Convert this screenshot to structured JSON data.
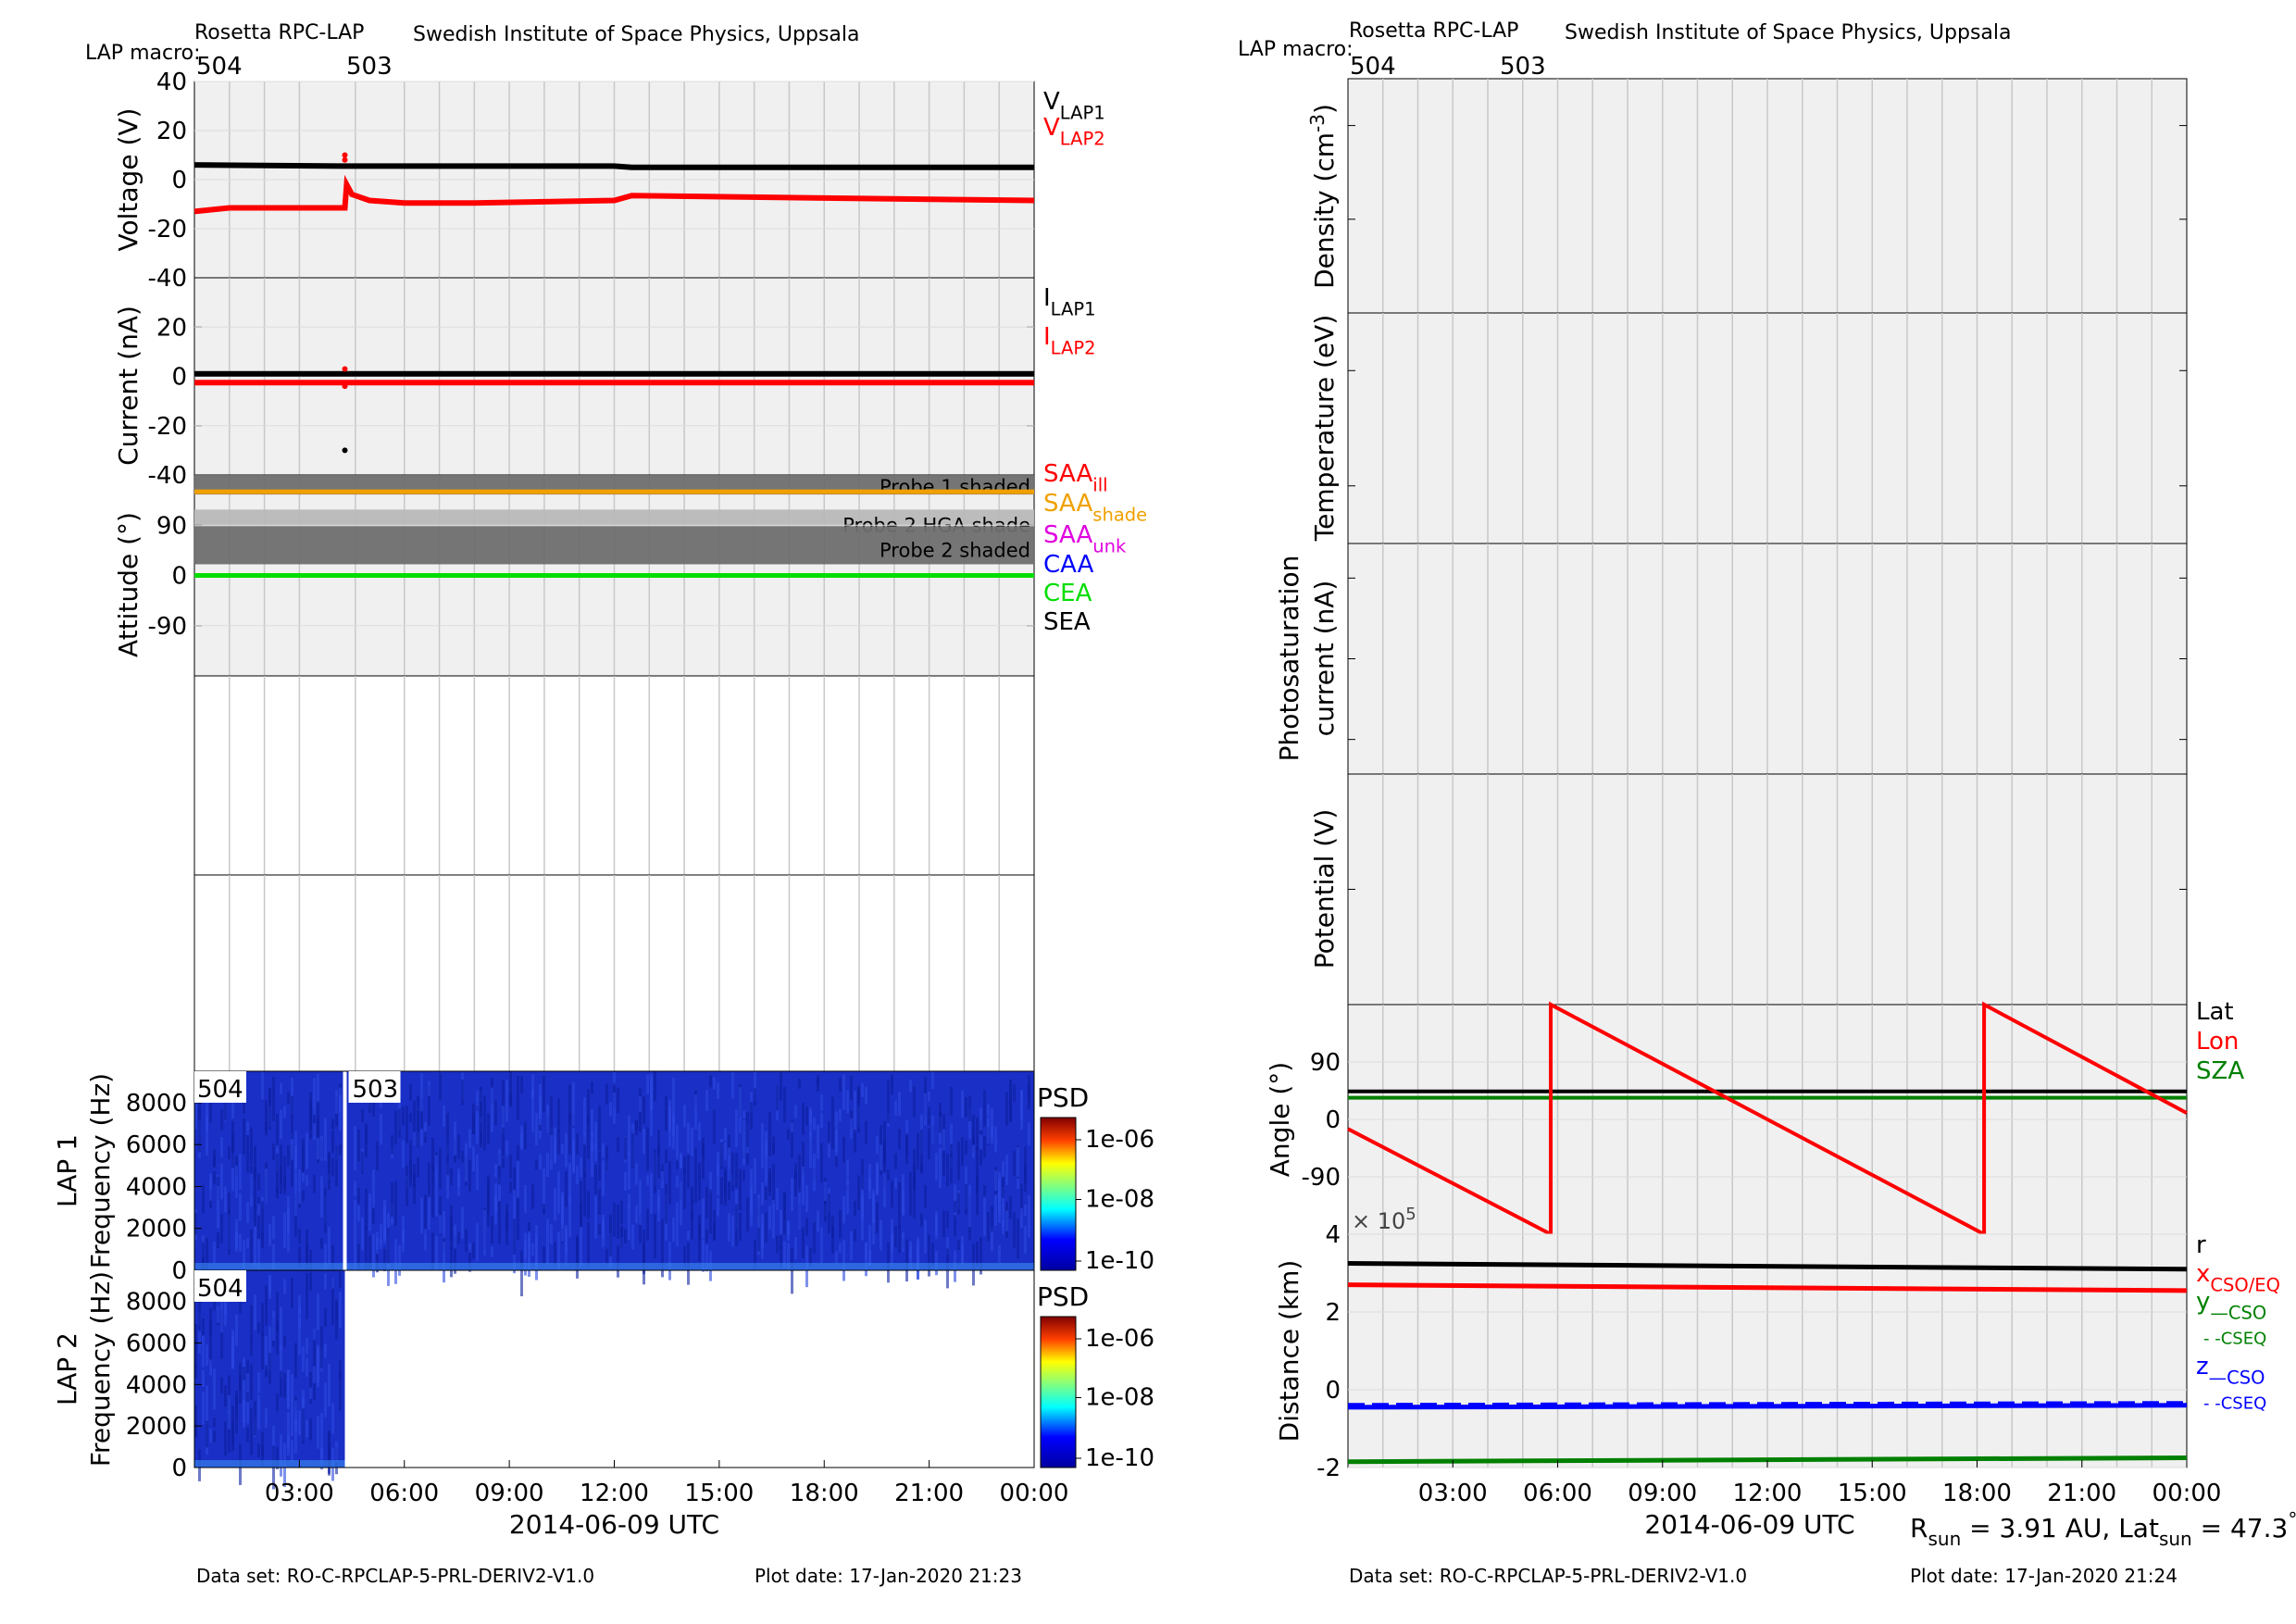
{
  "header": {
    "instrument": "Rosetta RPC-LAP",
    "institute": "Swedish Institute of Space Physics, Uppsala",
    "macro_label": "LAP macro:",
    "macro_a": "504",
    "macro_b": "503"
  },
  "footer": {
    "left_dataset": "Data set: RO-C-RPCLAP-5-PRL-DERIV2-V1.0",
    "left_plotdate": "Plot date: 17-Jan-2020 21:23",
    "right_dataset": "Data set: RO-C-RPCLAP-5-PRL-DERIV2-V1.0",
    "right_plotdate": "Plot date: 17-Jan-2020 21:24"
  },
  "colors": {
    "panel_bg": "#f0f0f0",
    "black": "#000000",
    "red": "#ff0000",
    "orange": "#f0a000",
    "magenta": "#e000e0",
    "blue": "#0000ff",
    "green": "#00dd00",
    "darkgreen": "#008000",
    "spectro": "#1a2fc6"
  },
  "chart_data": [
    {
      "panel": "left-voltage",
      "type": "line",
      "ylabel": "Voltage (V)",
      "ytick_labels": [
        "40",
        "20",
        "0",
        "-20",
        "-40"
      ],
      "ylim": [
        -40,
        40
      ],
      "x_unit": "hours since 2014-06-09 00:00 UTC",
      "xlim": [
        0,
        24
      ],
      "legend": [
        {
          "label": "V",
          "sub": "LAP1",
          "color": "#000000"
        },
        {
          "label": "V",
          "sub": "LAP2",
          "color": "#ff0000"
        }
      ],
      "series": [
        {
          "name": "VLAP1",
          "color": "#000000",
          "x": [
            0,
            4.2,
            4.3,
            12,
            12.5,
            24
          ],
          "y": [
            6,
            5.5,
            5.5,
            5.5,
            5,
            5
          ]
        },
        {
          "name": "VLAP2",
          "color": "#ff0000",
          "x": [
            0,
            1,
            4.3,
            4.35,
            4.5,
            5,
            6,
            8,
            12,
            12.5,
            18,
            24
          ],
          "y": [
            -13,
            -11.5,
            -11.5,
            -2,
            -6,
            -8.5,
            -9.5,
            -9.5,
            -8.5,
            -6.5,
            -7.5,
            -8.5
          ]
        }
      ],
      "points": [
        {
          "x": 4.3,
          "y": 10,
          "color": "#ff0000"
        },
        {
          "x": 4.3,
          "y": 8,
          "color": "#ff0000"
        }
      ]
    },
    {
      "panel": "left-current",
      "type": "line",
      "ylabel": "Current (nA)",
      "ytick_labels": [
        "20",
        "0",
        "-20",
        "-40"
      ],
      "ylim": [
        -40,
        40
      ],
      "x_unit": "hours since 2014-06-09 00:00 UTC",
      "xlim": [
        0,
        24
      ],
      "legend": [
        {
          "label": "I",
          "sub": "LAP1",
          "color": "#000000"
        },
        {
          "label": "I",
          "sub": "LAP2",
          "color": "#ff0000"
        }
      ],
      "series": [
        {
          "name": "ILAP1",
          "color": "#000000",
          "x": [
            0,
            24
          ],
          "y": [
            1,
            1
          ]
        },
        {
          "name": "ILAP2",
          "color": "#ff0000",
          "x": [
            0,
            24
          ],
          "y": [
            -2.5,
            -2.5
          ]
        }
      ],
      "points": [
        {
          "x": 4.3,
          "y": 3,
          "color": "#ff0000"
        },
        {
          "x": 4.3,
          "y": -4,
          "color": "#ff0000"
        },
        {
          "x": 4.3,
          "y": -30,
          "color": "#000000"
        }
      ]
    },
    {
      "panel": "left-attitude",
      "type": "line",
      "ylabel": "Attitude (°)",
      "ytick_labels": [
        "90",
        "0",
        "-90"
      ],
      "ylim": [
        -180,
        180
      ],
      "x_unit": "hours since 2014-06-09 00:00 UTC",
      "xlim": [
        0,
        24
      ],
      "bands": [
        {
          "y0": 145,
          "y1": 180,
          "label": "Probe 1 shaded",
          "color": "#6e6e6e"
        },
        {
          "y0": 88,
          "y1": 118,
          "label": "Probe 2 HGA shade",
          "color": "#b8b8b8"
        },
        {
          "y0": 20,
          "y1": 88,
          "label": "Probe 2 shaded",
          "color": "#6e6e6e"
        }
      ],
      "legend": [
        {
          "label": "SAA",
          "sub": "ill",
          "color": "#ff0000"
        },
        {
          "label": "SAA",
          "sub": "shade",
          "color": "#f0a000"
        },
        {
          "label": "SAA",
          "sub": "unk",
          "color": "#e000e0"
        },
        {
          "label": "CAA",
          "sub": "",
          "color": "#0000ff"
        },
        {
          "label": "CEA",
          "sub": "",
          "color": "#00dd00"
        },
        {
          "label": "SEA",
          "sub": "",
          "color": "#000000"
        }
      ],
      "series": [
        {
          "name": "SAAshade",
          "color": "#f0a000",
          "x": [
            0,
            24
          ],
          "y": [
            150,
            150
          ]
        },
        {
          "name": "CEA",
          "color": "#00dd00",
          "x": [
            0,
            24
          ],
          "y": [
            0,
            0
          ]
        }
      ]
    },
    {
      "panel": "left-lap1-spectrogram",
      "type": "heatmap",
      "ylabel": "LAP 1 Frequency (Hz)",
      "ylabel_line1": "LAP 1",
      "ylabel_line2": "Frequency (Hz)",
      "ytick_labels": [
        "8000",
        "6000",
        "4000",
        "2000",
        "0"
      ],
      "ylim": [
        0,
        9500
      ],
      "macros": [
        "504",
        "503"
      ],
      "colorbar_label": "PSD",
      "colorbar_ticks": [
        "1e-06",
        "1e-08",
        "1e-10"
      ]
    },
    {
      "panel": "left-lap2-spectrogram",
      "type": "heatmap",
      "ylabel": "LAP 2 Frequency (Hz)",
      "ylabel_line1": "LAP 2",
      "ylabel_line2": "Frequency (Hz)",
      "ytick_labels": [
        "8000",
        "6000",
        "4000",
        "2000",
        "0"
      ],
      "ylim": [
        0,
        9500
      ],
      "macros": [
        "504"
      ],
      "colorbar_label": "PSD",
      "colorbar_ticks": [
        "1e-06",
        "1e-08",
        "1e-10"
      ]
    },
    {
      "panel": "left-time-axis",
      "type": "line",
      "x_tick_labels": [
        "03:00",
        "06:00",
        "09:00",
        "12:00",
        "15:00",
        "18:00",
        "21:00",
        "00:00"
      ],
      "xlabel": "2014-06-09 UTC"
    },
    {
      "panel": "right-density",
      "type": "line",
      "ylabel": "Density (cm-3)",
      "ylabel_main": "Density (cm",
      "ylabel_sup": "-3",
      "ylabel_end": ")"
    },
    {
      "panel": "right-temperature",
      "type": "line",
      "ylabel": "Temperature (eV)"
    },
    {
      "panel": "right-photosaturation",
      "type": "line",
      "ylabel": "Photosaturation current (nA)",
      "ylabel_line1": "Photosaturation",
      "ylabel_line2": "current (nA)"
    },
    {
      "panel": "right-potential",
      "type": "line",
      "ylabel": "Potential (V)"
    },
    {
      "panel": "right-angle",
      "type": "line",
      "ylabel": "Angle (°)",
      "ytick_labels": [
        "90",
        "0",
        "-90"
      ],
      "ylim": [
        -180,
        180
      ],
      "x_unit": "hours since 2014-06-09 00:00 UTC",
      "xlim": [
        0,
        24
      ],
      "legend": [
        {
          "label": "Lat",
          "color": "#000000"
        },
        {
          "label": "Lon",
          "color": "#ff0000"
        },
        {
          "label": "SZA",
          "color": "#008000"
        }
      ],
      "series": [
        {
          "name": "Lat",
          "color": "#000000",
          "x": [
            0,
            24
          ],
          "y": [
            44,
            44
          ]
        },
        {
          "name": "SZA",
          "color": "#008000",
          "x": [
            0,
            24
          ],
          "y": [
            34,
            34
          ]
        },
        {
          "name": "Lon",
          "color": "#ff0000",
          "x": [
            0,
            5.8,
            5.8,
            18.2,
            18.2,
            24
          ],
          "y": [
            -15,
            -180,
            180,
            -180,
            180,
            10
          ]
        }
      ]
    },
    {
      "panel": "right-distance",
      "type": "line",
      "ylabel": "Distance (km)",
      "ytick_labels": [
        "4",
        "2",
        "0",
        "-2"
      ],
      "ylim": [
        -2,
        4
      ],
      "scale_note": "× 10",
      "scale_exp": "5",
      "x_unit": "hours since 2014-06-09 00:00 UTC",
      "xlim": [
        0,
        24
      ],
      "legend": [
        {
          "label": "r",
          "sub": "",
          "color": "#000000"
        },
        {
          "label": "x",
          "sub": "CSO/EQ",
          "color": "#ff0000"
        },
        {
          "label": "y",
          "sub": "—CSO",
          "color": "#008000"
        },
        {
          "label": "",
          "sub": "- -CSEQ",
          "color": "#008000"
        },
        {
          "label": "z",
          "sub": "—CSO",
          "color": "#0000ff"
        },
        {
          "label": "",
          "sub": "- -CSEQ",
          "color": "#0000ff"
        }
      ],
      "series": [
        {
          "name": "r",
          "color": "#000000",
          "x": [
            0,
            24
          ],
          "y": [
            3.25,
            3.1
          ]
        },
        {
          "name": "x",
          "color": "#ff0000",
          "x": [
            0,
            24
          ],
          "y": [
            2.7,
            2.55
          ]
        },
        {
          "name": "z",
          "color": "#0000ff",
          "x": [
            0,
            24
          ],
          "y": [
            -0.45,
            -0.4
          ]
        },
        {
          "name": "y",
          "color": "#008000",
          "x": [
            0,
            24
          ],
          "y": [
            -1.85,
            -1.75
          ]
        }
      ]
    },
    {
      "panel": "right-time-axis",
      "type": "line",
      "x_tick_labels": [
        "03:00",
        "06:00",
        "09:00",
        "12:00",
        "15:00",
        "18:00",
        "21:00",
        "00:00"
      ],
      "xlabel": "2014-06-09 UTC",
      "sun_info": {
        "r_label": "R",
        "r_sub": "sun",
        "r_value": " = 3.91 AU, Lat",
        "lat_sub": "sun",
        "lat_value": " = 47.3",
        "deg": "°"
      }
    }
  ]
}
